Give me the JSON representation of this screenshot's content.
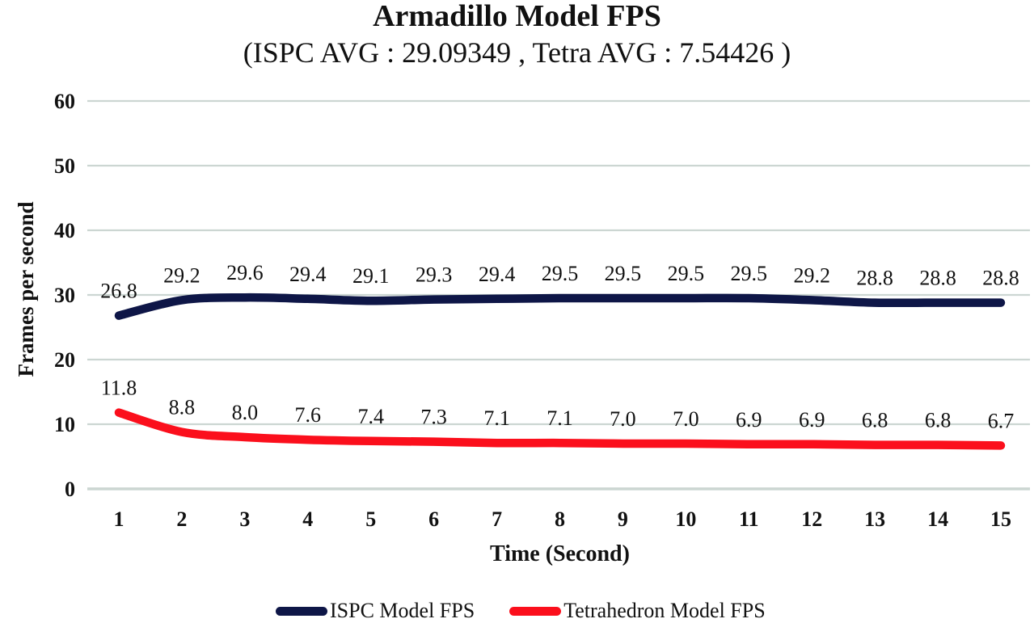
{
  "page": {
    "background": "#ffffff"
  },
  "chart_data": {
    "type": "line",
    "title": "Armadillo Model FPS",
    "subtitle": "(ISPC AVG : 29.09349 , Tetra AVG : 7.54426 )",
    "xlabel": "Time (Second)",
    "ylabel": "Frames per second",
    "x": [
      1,
      2,
      3,
      4,
      5,
      6,
      7,
      8,
      9,
      10,
      11,
      12,
      13,
      14,
      15
    ],
    "xlim": [
      1,
      15
    ],
    "ylim": [
      0,
      60
    ],
    "yticks": [
      0,
      10,
      20,
      30,
      40,
      50,
      60
    ],
    "grid": true,
    "grid_color": "#ccd6d2",
    "legend_position": "bottom",
    "series": [
      {
        "name": "ISPC Model FPS",
        "color": "#0e1647",
        "average": 29.09349,
        "values": [
          26.8,
          29.2,
          29.6,
          29.4,
          29.1,
          29.3,
          29.4,
          29.5,
          29.5,
          29.5,
          29.5,
          29.2,
          28.8,
          28.8,
          28.8
        ]
      },
      {
        "name": "Tetrahedron Model FPS",
        "color": "#fb0f1c",
        "average": 7.54426,
        "values": [
          11.8,
          8.8,
          8.0,
          7.6,
          7.4,
          7.3,
          7.1,
          7.1,
          7.0,
          7.0,
          6.9,
          6.9,
          6.8,
          6.8,
          6.7
        ]
      }
    ]
  }
}
